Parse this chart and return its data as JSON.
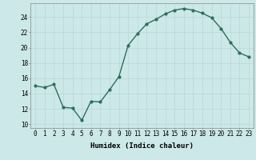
{
  "x": [
    0,
    1,
    2,
    3,
    4,
    5,
    6,
    7,
    8,
    9,
    10,
    11,
    12,
    13,
    14,
    15,
    16,
    17,
    18,
    19,
    20,
    21,
    22,
    23
  ],
  "y": [
    15,
    14.8,
    15.2,
    12.2,
    12.1,
    10.5,
    13.0,
    12.9,
    14.5,
    16.2,
    20.3,
    21.8,
    23.1,
    23.7,
    24.4,
    24.9,
    25.1,
    24.9,
    24.5,
    23.9,
    22.5,
    20.7,
    19.3,
    18.8
  ],
  "line_color": "#2d6e5e",
  "marker": "o",
  "markersize": 2.0,
  "linewidth": 1.0,
  "bg_color": "#cce8e8",
  "grid_color": "#b8d8d8",
  "xlabel": "Humidex (Indice chaleur)",
  "xlim": [
    -0.5,
    23.5
  ],
  "ylim": [
    9.5,
    25.8
  ],
  "yticks": [
    10,
    12,
    14,
    16,
    18,
    20,
    22,
    24
  ],
  "xticks": [
    0,
    1,
    2,
    3,
    4,
    5,
    6,
    7,
    8,
    9,
    10,
    11,
    12,
    13,
    14,
    15,
    16,
    17,
    18,
    19,
    20,
    21,
    22,
    23
  ],
  "xtick_labels": [
    "0",
    "1",
    "2",
    "3",
    "4",
    "5",
    "6",
    "7",
    "8",
    "9",
    "10",
    "11",
    "12",
    "13",
    "14",
    "15",
    "16",
    "17",
    "18",
    "19",
    "20",
    "21",
    "22",
    "23"
  ],
  "xlabel_fontsize": 6.5,
  "tick_fontsize": 5.5
}
